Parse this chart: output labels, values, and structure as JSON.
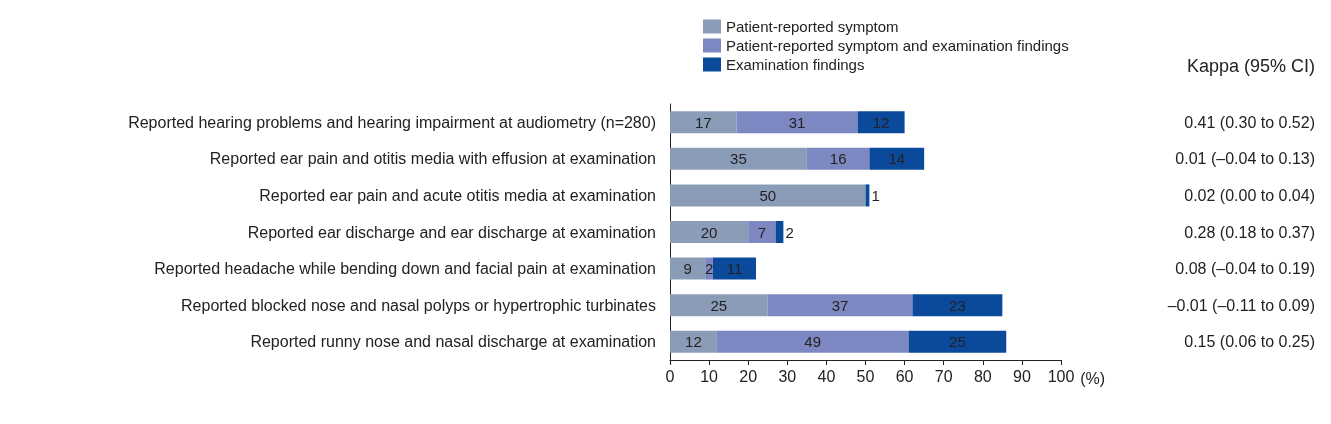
{
  "chart_data": {
    "type": "bar",
    "orientation": "horizontal",
    "stacked": true,
    "data_labels": true,
    "categories": [
      "Reported hearing problems and hearing impairment at audiometry (n=280)",
      "Reported ear pain and otitis media with effusion at examination",
      "Reported ear pain and acute otitis media at examination",
      "Reported ear discharge and ear discharge at examination",
      "Reported headache while bending down and facial pain at examination",
      "Reported blocked nose and nasal polyps or hypertrophic turbinates",
      "Reported runny nose and nasal discharge at examination"
    ],
    "series": [
      {
        "name": "Patient-reported symptom",
        "color": "#8b9cb8",
        "values": [
          17,
          35,
          50,
          20,
          9,
          25,
          12
        ]
      },
      {
        "name": "Patient-reported symptom and examination findings",
        "color": "#7d87c1",
        "values": [
          31,
          16,
          null,
          7,
          2,
          37,
          49
        ]
      },
      {
        "name": "Examination findings",
        "color": "#0b4a9b",
        "values": [
          12,
          14,
          1,
          2,
          11,
          23,
          25
        ]
      }
    ],
    "xlim": [
      0,
      100
    ],
    "xticks": [
      0,
      10,
      20,
      30,
      40,
      50,
      60,
      70,
      80,
      90,
      100
    ],
    "xlabel": "(%)",
    "grid": false,
    "legend": "top",
    "annotations": [
      "Kappa (95% CI)",
      "0.41 (0.30 to 0.52)",
      "0.01 (–0.04 to 0.13)",
      "0.02 (0.00 to 0.04)",
      "0.28 (0.18 to 0.37)",
      "0.08 (–0.04 to 0.19)",
      "–0.01 (–0.11 to 0.09)",
      "0.15 (0.06 to 0.25)"
    ]
  }
}
